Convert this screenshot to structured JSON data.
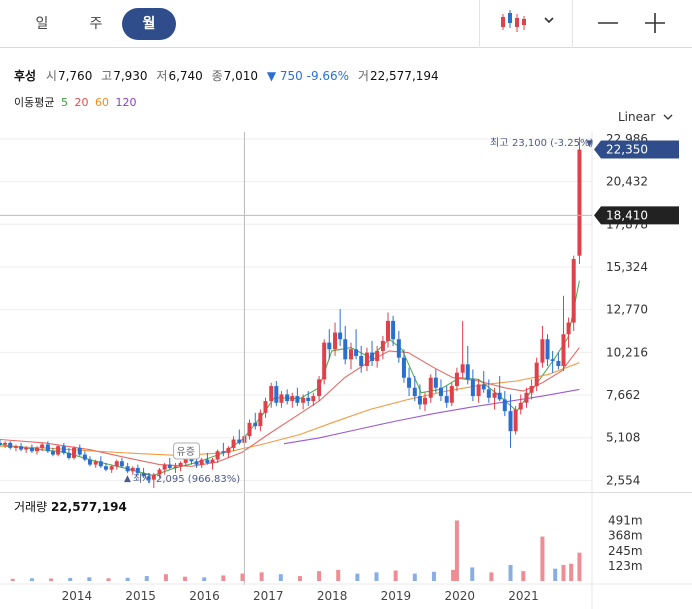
{
  "period_tabs": {
    "day": "일",
    "week": "주",
    "month": "월"
  },
  "toolbar_icons": [
    "candlestick-icon",
    "chevron-down-icon",
    "minus-icon",
    "plus-icon"
  ],
  "quote": {
    "name": "후성",
    "open_label": "시",
    "open": "7,760",
    "high_label": "고",
    "high": "7,930",
    "low_label": "저",
    "low": "6,740",
    "close_label": "종",
    "close": "7,010",
    "change": "▼ 750 -9.66%",
    "volume_label": "거",
    "volume": "22,577,194"
  },
  "moving_average": {
    "label": "이동평균",
    "periods": [
      {
        "label": "5",
        "color": "#3aa03a"
      },
      {
        "label": "20",
        "color": "#e2504b"
      },
      {
        "label": "60",
        "color": "#f08a24"
      },
      {
        "label": "120",
        "color": "#8a3fc6"
      }
    ]
  },
  "scale_mode": "Linear",
  "colors": {
    "up": "#e0404a",
    "down": "#2a6fd0",
    "accent": "#2f4d8b",
    "dark_tag": "#222222"
  },
  "chart_data": {
    "type": "candlestick",
    "y_ticks": [
      "22,986",
      "20,432",
      "17,878",
      "15,324",
      "12,770",
      "10,216",
      "7,662",
      "5,108",
      "2,554"
    ],
    "y_tick_values": [
      22986,
      20432,
      17878,
      15324,
      12770,
      10216,
      7662,
      5108,
      2554
    ],
    "ylim": [
      2100,
      23400
    ],
    "x_ticks": [
      "2014",
      "2015",
      "2016",
      "2017",
      "2018",
      "2019",
      "2020",
      "2021"
    ],
    "x_tick_years": [
      2014,
      2015,
      2016,
      2017,
      2018,
      2019,
      2020,
      2021
    ],
    "x_range_years": [
      2012.8,
      2021.92
    ],
    "current_price_tag": "22,350",
    "current_price": 22350,
    "crosshair_price_tag": "18,410",
    "crosshair_price": 18410,
    "crosshair_year": 2016.63,
    "high_marker": {
      "label": "최고",
      "value": "23,100 (-3.25%)",
      "arrow": "▼"
    },
    "low_marker": {
      "label": "최저",
      "value": "2,095 (966.83%)",
      "arrow": "▲"
    },
    "event_badge": "유증",
    "event_year": 2015.3,
    "candles": [
      [
        2012.8,
        4800,
        5000,
        4600,
        4700
      ],
      [
        2012.88,
        4700,
        4900,
        4500,
        4800
      ],
      [
        2012.96,
        4800,
        4900,
        4400,
        4500
      ],
      [
        2013.05,
        4500,
        4700,
        4300,
        4600
      ],
      [
        2013.13,
        4600,
        4800,
        4300,
        4400
      ],
      [
        2013.21,
        4400,
        4600,
        4200,
        4500
      ],
      [
        2013.3,
        4500,
        4700,
        4200,
        4300
      ],
      [
        2013.38,
        4300,
        4600,
        4100,
        4500
      ],
      [
        2013.46,
        4500,
        4800,
        4300,
        4700
      ],
      [
        2013.55,
        4700,
        4900,
        4200,
        4300
      ],
      [
        2013.63,
        4300,
        4500,
        4000,
        4100
      ],
      [
        2013.71,
        4100,
        4700,
        4000,
        4600
      ],
      [
        2013.8,
        4600,
        4800,
        4100,
        4200
      ],
      [
        2013.88,
        4200,
        4500,
        3800,
        3900
      ],
      [
        2013.96,
        3900,
        4600,
        3800,
        4500
      ],
      [
        2014.05,
        4500,
        4700,
        4000,
        4100
      ],
      [
        2014.13,
        4100,
        4300,
        3700,
        3800
      ],
      [
        2014.21,
        3800,
        4000,
        3400,
        3500
      ],
      [
        2014.3,
        3500,
        3800,
        3300,
        3700
      ],
      [
        2014.38,
        3700,
        4000,
        3300,
        3400
      ],
      [
        2014.46,
        3400,
        3600,
        3100,
        3200
      ],
      [
        2014.55,
        3200,
        3500,
        3000,
        3400
      ],
      [
        2014.63,
        3400,
        3800,
        3200,
        3700
      ],
      [
        2014.71,
        3700,
        3900,
        3300,
        3400
      ],
      [
        2014.8,
        3400,
        3600,
        3000,
        3100
      ],
      [
        2014.88,
        3100,
        3400,
        2900,
        3300
      ],
      [
        2014.96,
        3300,
        3500,
        2900,
        3000
      ],
      [
        2015.05,
        3000,
        3300,
        2700,
        2800
      ],
      [
        2015.13,
        2800,
        3000,
        2400,
        2600
      ],
      [
        2015.21,
        2600,
        3000,
        2100,
        2900
      ],
      [
        2015.3,
        2900,
        3300,
        2700,
        3200
      ],
      [
        2015.38,
        3200,
        3600,
        2900,
        3500
      ],
      [
        2015.46,
        3500,
        3900,
        3200,
        3300
      ],
      [
        2015.55,
        3300,
        3600,
        3000,
        3400
      ],
      [
        2015.63,
        3400,
        3700,
        3100,
        3600
      ],
      [
        2015.71,
        3600,
        4100,
        3400,
        3900
      ],
      [
        2015.8,
        3900,
        4300,
        3500,
        3700
      ],
      [
        2015.88,
        3700,
        4000,
        3300,
        3500
      ],
      [
        2015.96,
        3500,
        3900,
        3300,
        3800
      ],
      [
        2016.05,
        3800,
        4200,
        3500,
        3600
      ],
      [
        2016.13,
        3600,
        3900,
        3200,
        3800
      ],
      [
        2016.21,
        3800,
        4400,
        3600,
        4300
      ],
      [
        2016.3,
        4300,
        4800,
        4000,
        4200
      ],
      [
        2016.38,
        4200,
        4600,
        3900,
        4500
      ],
      [
        2016.46,
        4500,
        5200,
        4300,
        5000
      ],
      [
        2016.55,
        5000,
        5600,
        4700,
        4800
      ],
      [
        2016.63,
        4800,
        5300,
        4500,
        5200
      ],
      [
        2016.71,
        5200,
        6200,
        5000,
        6000
      ],
      [
        2016.8,
        6000,
        6600,
        5600,
        5800
      ],
      [
        2016.88,
        5800,
        6800,
        5500,
        6600
      ],
      [
        2016.96,
        6600,
        7500,
        6300,
        7300
      ],
      [
        2017.05,
        7300,
        8400,
        6900,
        8200
      ],
      [
        2017.13,
        8200,
        8500,
        7000,
        7200
      ],
      [
        2017.21,
        7200,
        7900,
        6900,
        7700
      ],
      [
        2017.3,
        7700,
        8000,
        7100,
        7300
      ],
      [
        2017.38,
        7300,
        7800,
        6900,
        7600
      ],
      [
        2017.46,
        7600,
        8100,
        7000,
        7200
      ],
      [
        2017.55,
        7200,
        7700,
        6800,
        7500
      ],
      [
        2017.63,
        7500,
        7900,
        7000,
        7300
      ],
      [
        2017.71,
        7300,
        7800,
        7000,
        7600
      ],
      [
        2017.8,
        7600,
        8800,
        7300,
        8600
      ],
      [
        2017.88,
        8600,
        11000,
        8300,
        10800
      ],
      [
        2017.96,
        10800,
        11600,
        9800,
        10400
      ],
      [
        2018.05,
        10400,
        12000,
        10000,
        11400
      ],
      [
        2018.13,
        11400,
        12800,
        10600,
        11000
      ],
      [
        2018.21,
        11000,
        11800,
        9500,
        9800
      ],
      [
        2018.3,
        9800,
        10800,
        9200,
        10400
      ],
      [
        2018.38,
        10400,
        11600,
        9800,
        10000
      ],
      [
        2018.46,
        10000,
        10600,
        9000,
        9400
      ],
      [
        2018.55,
        9400,
        10500,
        9100,
        10200
      ],
      [
        2018.63,
        10200,
        10900,
        9400,
        9700
      ],
      [
        2018.71,
        9700,
        10600,
        9300,
        10300
      ],
      [
        2018.8,
        10300,
        11200,
        9800,
        10900
      ],
      [
        2018.88,
        10900,
        12600,
        10500,
        12100
      ],
      [
        2018.96,
        12100,
        12400,
        10600,
        11000
      ],
      [
        2019.05,
        11000,
        11500,
        9600,
        9900
      ],
      [
        2019.13,
        9900,
        10400,
        8400,
        8700
      ],
      [
        2019.21,
        8700,
        9300,
        7600,
        8100
      ],
      [
        2019.3,
        8100,
        8800,
        7300,
        7600
      ],
      [
        2019.38,
        7600,
        8300,
        6800,
        7100
      ],
      [
        2019.46,
        7100,
        7800,
        6700,
        7500
      ],
      [
        2019.55,
        7500,
        8900,
        7200,
        8700
      ],
      [
        2019.63,
        8700,
        9200,
        7800,
        8100
      ],
      [
        2019.71,
        8100,
        8600,
        7300,
        7600
      ],
      [
        2019.8,
        7600,
        8200,
        6900,
        7200
      ],
      [
        2019.88,
        7200,
        8400,
        7000,
        8200
      ],
      [
        2019.96,
        8200,
        9300,
        7900,
        9000
      ],
      [
        2020.05,
        9000,
        12100,
        8700,
        9500
      ],
      [
        2020.13,
        9500,
        10600,
        8300,
        8600
      ],
      [
        2020.21,
        8600,
        9200,
        7300,
        7600
      ],
      [
        2020.3,
        7600,
        8600,
        7200,
        8300
      ],
      [
        2020.38,
        8300,
        9100,
        7800,
        8000
      ],
      [
        2020.46,
        8000,
        8600,
        7200,
        7500
      ],
      [
        2020.55,
        7500,
        8100,
        6800,
        7800
      ],
      [
        2020.63,
        7800,
        8800,
        7300,
        7400
      ],
      [
        2020.71,
        7400,
        7900,
        6400,
        6700
      ],
      [
        2020.8,
        6700,
        7700,
        4500,
        5500
      ],
      [
        2020.88,
        5500,
        7000,
        5300,
        6800
      ],
      [
        2020.96,
        6800,
        7700,
        6500,
        7200
      ],
      [
        2021.05,
        7200,
        8100,
        6900,
        7800
      ],
      [
        2021.13,
        7800,
        8600,
        7400,
        8200
      ],
      [
        2021.21,
        8200,
        9900,
        7900,
        9600
      ],
      [
        2021.3,
        9600,
        11800,
        9300,
        11000
      ],
      [
        2021.38,
        11000,
        11300,
        9400,
        9800
      ],
      [
        2021.46,
        9800,
        10300,
        9000,
        9700
      ],
      [
        2021.55,
        9700,
        10200,
        9200,
        9400
      ],
      [
        2021.63,
        9400,
        13600,
        9100,
        11300
      ],
      [
        2021.71,
        11300,
        12300,
        10500,
        12000
      ],
      [
        2021.79,
        12000,
        16000,
        11500,
        15800
      ],
      [
        2021.88,
        16000,
        23100,
        15500,
        22350
      ]
    ],
    "moving_averages": {
      "ma5": [
        [
          2012.8,
          4700
        ],
        [
          2013.3,
          4450
        ],
        [
          2013.8,
          4250
        ],
        [
          2014.3,
          3700
        ],
        [
          2014.8,
          3250
        ],
        [
          2015.2,
          2850
        ],
        [
          2015.5,
          3250
        ],
        [
          2015.9,
          3650
        ],
        [
          2016.3,
          4200
        ],
        [
          2016.6,
          5000
        ],
        [
          2016.9,
          6400
        ],
        [
          2017.1,
          7500
        ],
        [
          2017.5,
          7450
        ],
        [
          2017.8,
          8100
        ],
        [
          2018.0,
          10300
        ],
        [
          2018.3,
          10500
        ],
        [
          2018.6,
          9900
        ],
        [
          2018.9,
          11000
        ],
        [
          2019.1,
          10400
        ],
        [
          2019.4,
          7800
        ],
        [
          2019.7,
          8000
        ],
        [
          2020.0,
          8700
        ],
        [
          2020.3,
          8600
        ],
        [
          2020.6,
          7700
        ],
        [
          2020.9,
          6700
        ],
        [
          2021.2,
          8300
        ],
        [
          2021.5,
          9900
        ],
        [
          2021.7,
          11100
        ],
        [
          2021.88,
          14500
        ]
      ],
      "ma20": [
        [
          2012.8,
          5000
        ],
        [
          2013.5,
          4800
        ],
        [
          2014.2,
          4400
        ],
        [
          2014.8,
          3900
        ],
        [
          2015.3,
          3500
        ],
        [
          2015.8,
          3400
        ],
        [
          2016.2,
          3650
        ],
        [
          2016.6,
          4250
        ],
        [
          2017.0,
          5300
        ],
        [
          2017.4,
          6300
        ],
        [
          2017.8,
          7300
        ],
        [
          2018.2,
          8700
        ],
        [
          2018.6,
          9700
        ],
        [
          2018.9,
          10300
        ],
        [
          2019.2,
          10200
        ],
        [
          2019.6,
          9300
        ],
        [
          2019.9,
          8700
        ],
        [
          2020.3,
          8500
        ],
        [
          2020.7,
          8100
        ],
        [
          2021.0,
          7900
        ],
        [
          2021.3,
          8400
        ],
        [
          2021.6,
          9100
        ],
        [
          2021.88,
          10500
        ]
      ],
      "ma60": [
        [
          2012.8,
          4600
        ],
        [
          2013.5,
          4500
        ],
        [
          2014.3,
          4300
        ],
        [
          2015.0,
          4150
        ],
        [
          2015.6,
          4050
        ],
        [
          2016.3,
          4200
        ],
        [
          2016.9,
          4700
        ],
        [
          2017.5,
          5300
        ],
        [
          2018.0,
          6000
        ],
        [
          2018.6,
          6800
        ],
        [
          2019.2,
          7400
        ],
        [
          2019.8,
          7900
        ],
        [
          2020.4,
          8300
        ],
        [
          2020.9,
          8500
        ],
        [
          2021.4,
          8900
        ],
        [
          2021.88,
          9600
        ]
      ],
      "ma120": [
        [
          2017.25,
          4750
        ],
        [
          2017.8,
          5100
        ],
        [
          2018.4,
          5600
        ],
        [
          2019.0,
          6100
        ],
        [
          2019.6,
          6550
        ],
        [
          2020.2,
          6950
        ],
        [
          2020.8,
          7300
        ],
        [
          2021.3,
          7600
        ],
        [
          2021.88,
          8000
        ]
      ]
    },
    "volume_title": "거래량",
    "volume_value": "22,577,194",
    "volume_ticks": [
      "491m",
      "368m",
      "245m",
      "123m"
    ],
    "volume_tick_values": [
      491,
      368,
      245,
      123
    ],
    "volume_ylim": [
      0,
      600
    ],
    "volume": [
      [
        2013.0,
        18,
        1
      ],
      [
        2013.3,
        22,
        0
      ],
      [
        2013.6,
        20,
        1
      ],
      [
        2013.9,
        25,
        0
      ],
      [
        2014.2,
        30,
        0
      ],
      [
        2014.5,
        22,
        1
      ],
      [
        2014.8,
        26,
        0
      ],
      [
        2015.1,
        40,
        0
      ],
      [
        2015.4,
        55,
        1
      ],
      [
        2015.7,
        35,
        1
      ],
      [
        2016.0,
        30,
        0
      ],
      [
        2016.3,
        45,
        1
      ],
      [
        2016.6,
        60,
        1
      ],
      [
        2016.9,
        70,
        1
      ],
      [
        2017.2,
        55,
        0
      ],
      [
        2017.5,
        40,
        1
      ],
      [
        2017.8,
        80,
        1
      ],
      [
        2018.1,
        90,
        1
      ],
      [
        2018.4,
        60,
        0
      ],
      [
        2018.7,
        70,
        0
      ],
      [
        2019.0,
        85,
        1
      ],
      [
        2019.3,
        60,
        0
      ],
      [
        2019.6,
        75,
        0
      ],
      [
        2019.9,
        90,
        1
      ],
      [
        2019.96,
        491,
        1
      ],
      [
        2020.2,
        110,
        0
      ],
      [
        2020.5,
        70,
        1
      ],
      [
        2020.8,
        130,
        0
      ],
      [
        2021.0,
        80,
        1
      ],
      [
        2021.3,
        360,
        1
      ],
      [
        2021.5,
        100,
        0
      ],
      [
        2021.63,
        130,
        1
      ],
      [
        2021.75,
        140,
        1
      ],
      [
        2021.88,
        230,
        1
      ]
    ]
  }
}
